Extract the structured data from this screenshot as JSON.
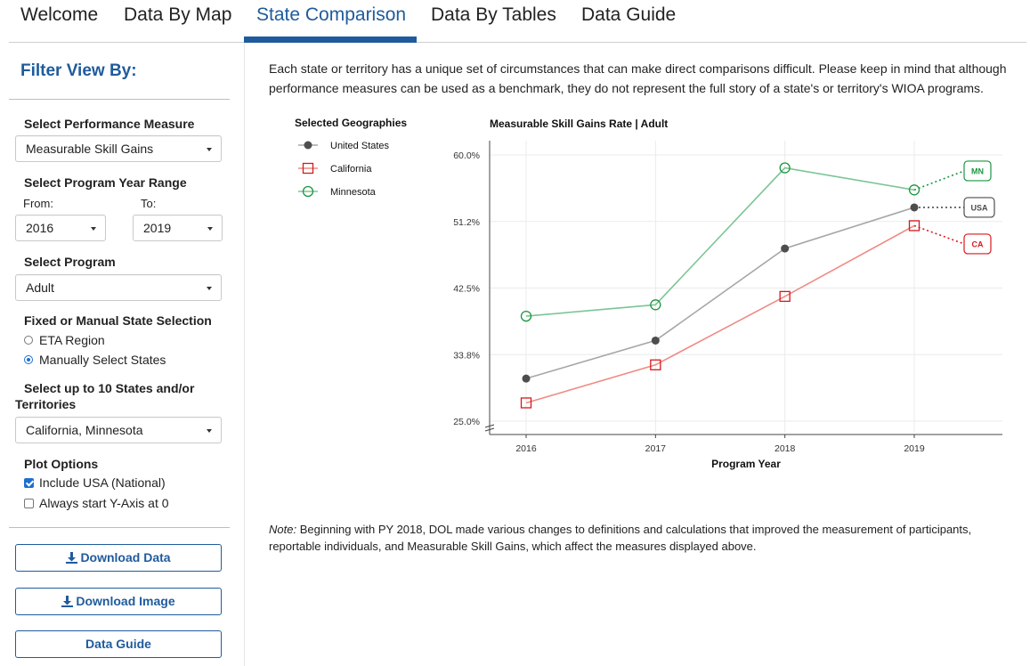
{
  "nav": {
    "tabs": [
      {
        "label": "Welcome"
      },
      {
        "label": "Data By Map"
      },
      {
        "label": "State Comparison"
      },
      {
        "label": "Data By Tables"
      },
      {
        "label": "Data Guide"
      }
    ],
    "active_tab": "State Comparison",
    "accent_color": "#1f5b9c"
  },
  "sidebar": {
    "title": "Filter View By:",
    "performance_measure": {
      "label": "Select Performance Measure",
      "value": "Measurable Skill Gains"
    },
    "year_range": {
      "label": "Select Program Year Range",
      "from_label": "From:",
      "from_value": "2016",
      "to_label": "To:",
      "to_value": "2019"
    },
    "program": {
      "label": "Select Program",
      "value": "Adult"
    },
    "state_selection": {
      "label": "Fixed or Manual State Selection",
      "options": [
        {
          "label": "ETA Region",
          "selected": false
        },
        {
          "label": "Manually Select States",
          "selected": true
        }
      ]
    },
    "states": {
      "label_line1": "Select up to 10 States and/or",
      "label_line2": "Territories",
      "value": "California, Minnesota"
    },
    "plot_options": {
      "label": "Plot Options",
      "options": [
        {
          "label": "Include USA (National)",
          "checked": true
        },
        {
          "label": "Always start Y-Axis at 0",
          "checked": false
        }
      ]
    },
    "buttons": {
      "download_data": "Download Data",
      "download_image": "Download Image",
      "data_guide": "Data Guide"
    }
  },
  "main": {
    "intro": "Each state or territory has a unique set of circumstances that can make direct comparisons difficult. Please keep in mind that although performance measures can be used as a benchmark, they do not represent the full story of a state's or territory's WIOA programs.",
    "note_label": "Note:",
    "note_text": " Beginning with PY 2018, DOL made various changes to definitions and calculations that improved the measurement of participants, reportable individuals, and Measurable Skill Gains, which affect the measures displayed above."
  },
  "chart_data": {
    "type": "line",
    "title": "Measurable Skill Gains Rate | Adult",
    "legend_title": "Selected Geographies",
    "legend_position": "left",
    "xlabel": "Program Year",
    "ylabel": "",
    "x": [
      2016,
      2017,
      2018,
      2019
    ],
    "yticks": [
      "25.0%",
      "33.8%",
      "42.5%",
      "51.2%",
      "60.0%"
    ],
    "ylim": [
      25.0,
      60.0
    ],
    "grid": true,
    "series": [
      {
        "name": "United States",
        "label": "USA",
        "values": [
          30.6,
          35.6,
          47.7,
          53.1
        ],
        "color": "#4d4d4d",
        "line_color": "#a6a6a6",
        "marker": "filled-circle",
        "projected": 53.1
      },
      {
        "name": "California",
        "label": "CA",
        "values": [
          27.4,
          32.4,
          41.4,
          50.7
        ],
        "color": "#d7191c",
        "line_color": "#ef8a84",
        "marker": "open-square",
        "projected": 48.3
      },
      {
        "name": "Minnesota",
        "label": "MN",
        "values": [
          38.8,
          40.3,
          58.3,
          55.4
        ],
        "color": "#1a9641",
        "line_color": "#7cc595",
        "marker": "open-circle",
        "projected": 57.9
      }
    ]
  }
}
